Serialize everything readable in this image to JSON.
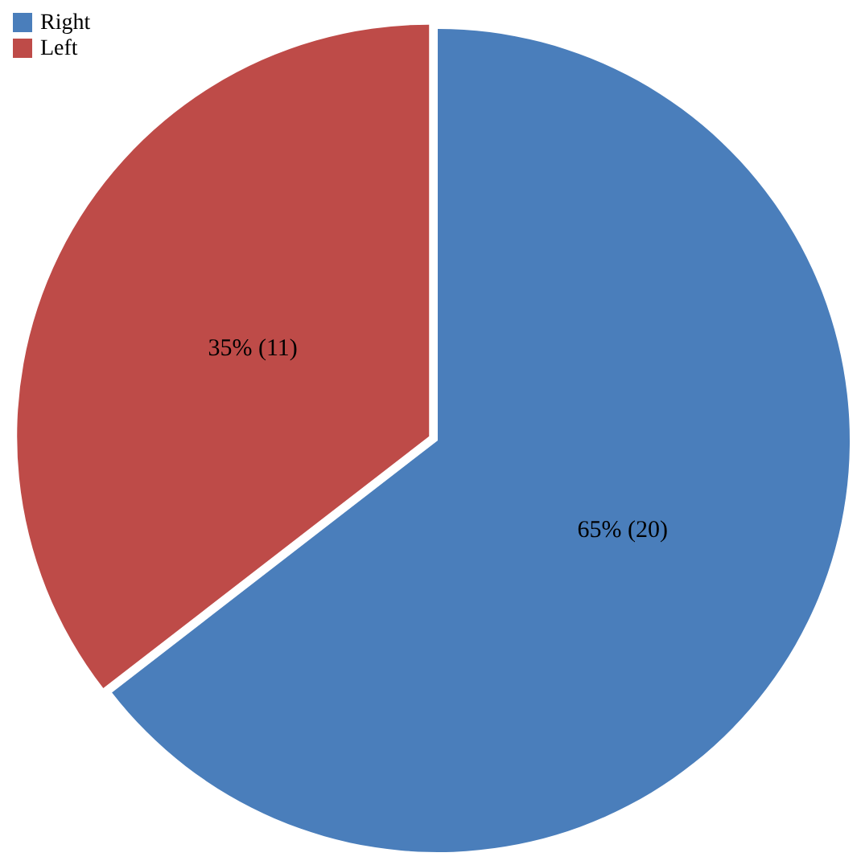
{
  "chart_data": {
    "type": "pie",
    "categories": [
      "Right",
      "Left"
    ],
    "values": [
      20,
      11
    ],
    "colors": [
      "#4a7ebb",
      "#be4b48"
    ],
    "value_labels": [
      "65% (20)",
      "35% (11)"
    ],
    "legend": "top left"
  }
}
